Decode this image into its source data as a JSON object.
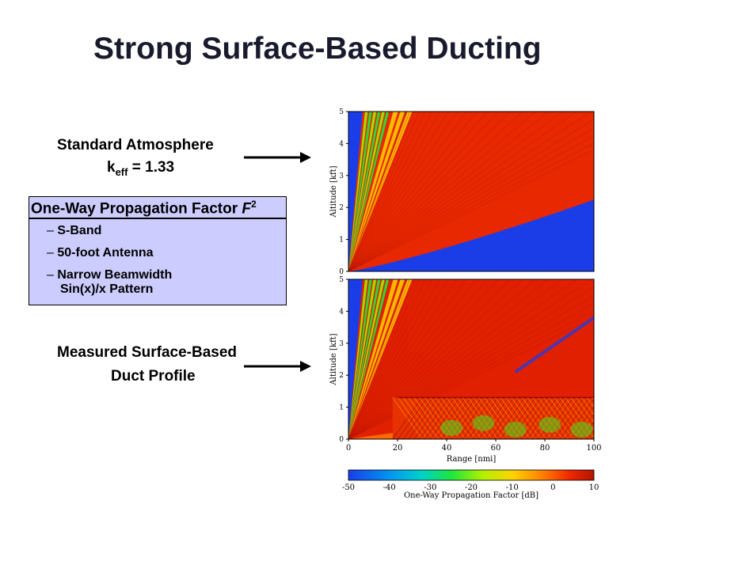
{
  "slide": {
    "title": "Strong Surface-Based Ducting",
    "standard_label": {
      "line1": "Standard Atmosphere",
      "k_main": "k",
      "k_sub": "eff",
      "k_rest": " = 1.33"
    },
    "box": {
      "heading_main": "One-Way Propagation Factor ",
      "heading_var": "F",
      "heading_sup": "2",
      "bullets": [
        "S-Band",
        "50-foot Antenna",
        "Narrow Beamwidth"
      ],
      "bullet_cont": "Sin(x)/x Pattern",
      "dash": "–"
    },
    "measured_label": {
      "line1": "Measured Surface-Based",
      "line2": "Duct Profile"
    }
  },
  "chart_data": [
    {
      "type": "heatmap",
      "panel": "top",
      "condition": "Standard Atmosphere, k_eff = 1.33",
      "x": {
        "label": "",
        "lim": [
          0,
          100
        ],
        "ticks": []
      },
      "y": {
        "label": "Altitude [kft]",
        "lim": [
          0,
          5
        ],
        "ticks": [
          "0",
          "1",
          "2",
          "3",
          "4",
          "5"
        ]
      },
      "colorscale": [
        "#1a3de8",
        "#00c8f0",
        "#1ee63c",
        "#d2f000",
        "#ffb400",
        "#ff4a00",
        "#c81e00"
      ]
    },
    {
      "type": "heatmap",
      "panel": "bottom",
      "condition": "Measured Surface-Based Duct Profile",
      "x": {
        "label": "Range [nmi]",
        "lim": [
          0,
          100
        ],
        "ticks": [
          "0",
          "20",
          "40",
          "60",
          "80",
          "100"
        ]
      },
      "y": {
        "label": "Altitude [kft]",
        "lim": [
          0,
          5
        ],
        "ticks": [
          "0",
          "1",
          "2",
          "3",
          "4",
          "5"
        ]
      },
      "duct_top": 1.3
    },
    {
      "type": "colorbar",
      "label": "One-Way Propagation Factor [dB]",
      "range": [
        -50,
        10
      ],
      "ticks": [
        "-50",
        "-40",
        "-30",
        "-20",
        "-10",
        "0",
        "10"
      ],
      "tick_values": [
        -50,
        -40,
        -30,
        -20,
        -10,
        0,
        10
      ]
    }
  ]
}
